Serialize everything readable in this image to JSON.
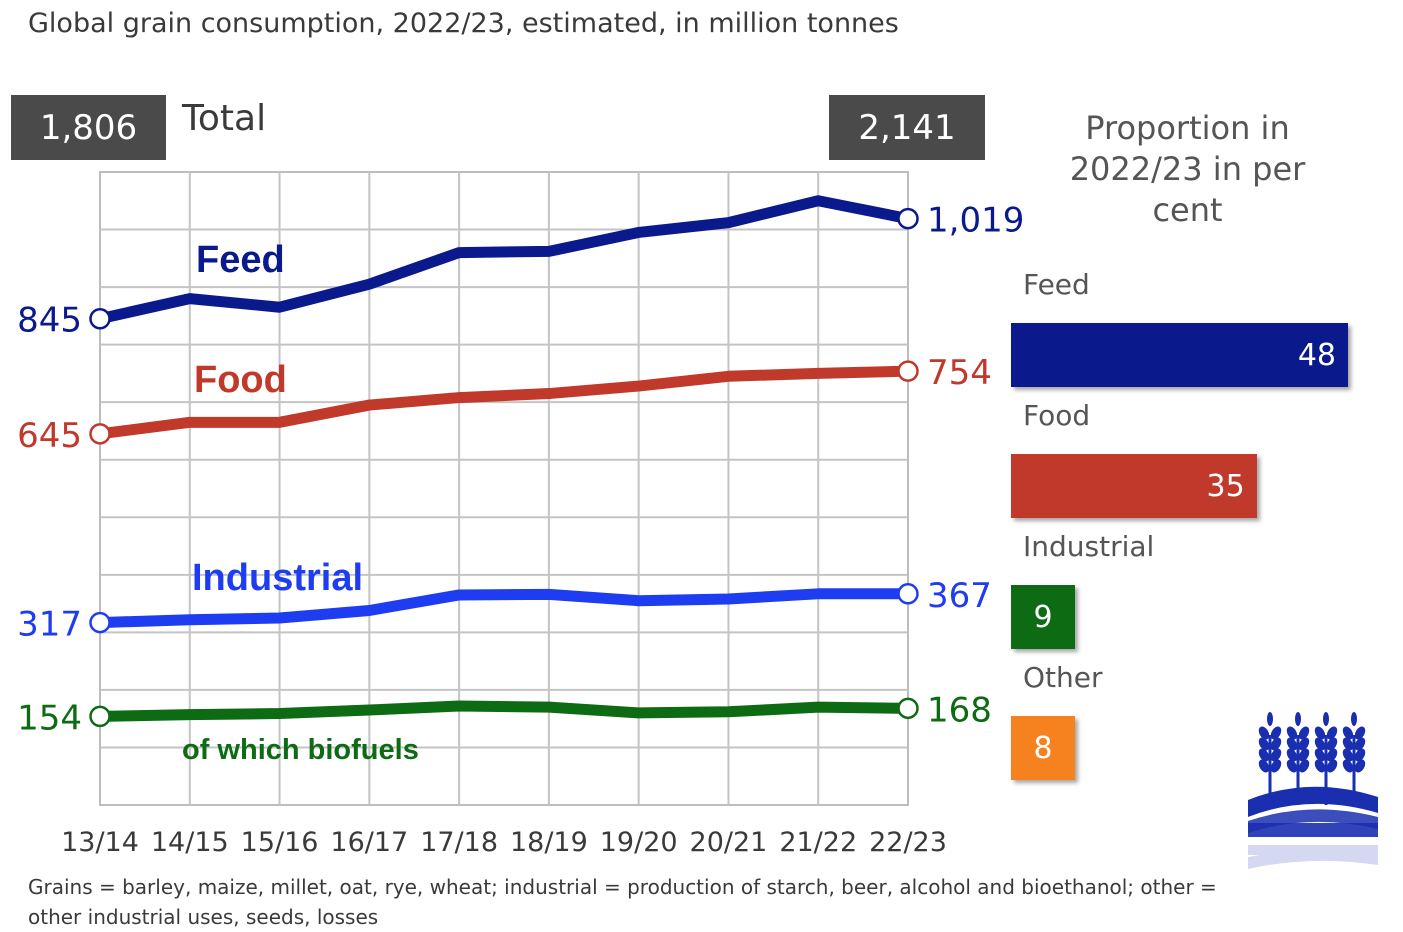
{
  "title": "Global grain consumption, 2022/23, estimated, in million tonnes",
  "total": {
    "label": "Total",
    "start": "1,806",
    "end": "2,141"
  },
  "chart_data": {
    "type": "line",
    "title": "Global grain consumption, 2022/23, estimated, in million tonnes",
    "x": [
      "13/14",
      "14/15",
      "15/16",
      "16/17",
      "17/18",
      "18/19",
      "19/20",
      "20/21",
      "21/22",
      "22/23"
    ],
    "series": [
      {
        "name": "Feed",
        "color": "#0a1a8c",
        "values": [
          845,
          880,
          865,
          905,
          960,
          962,
          995,
          1012,
          1050,
          1019
        ],
        "start_label": "845",
        "end_label": "1,019"
      },
      {
        "name": "Food",
        "color": "#c0392b",
        "values": [
          645,
          665,
          665,
          695,
          708,
          715,
          728,
          745,
          750,
          754
        ],
        "start_label": "645",
        "end_label": "754"
      },
      {
        "name": "Industrial",
        "color": "#1f3df0",
        "values": [
          317,
          322,
          325,
          338,
          365,
          366,
          355,
          358,
          367,
          367
        ],
        "start_label": "317",
        "end_label": "367"
      },
      {
        "name": "of which biofuels",
        "color": "#0d6b14",
        "values": [
          154,
          157,
          159,
          165,
          172,
          170,
          160,
          162,
          170,
          168
        ],
        "start_label": "154",
        "end_label": "168"
      }
    ],
    "ylim": [
      0,
      1100
    ],
    "grid": true
  },
  "proportion": {
    "title": "Proportion in 2022/23 in per cent",
    "items": [
      {
        "label": "Feed",
        "value": 48,
        "display": "48",
        "color": "#0a1a8c"
      },
      {
        "label": "Food",
        "value": 35,
        "display": "35",
        "color": "#c0392b"
      },
      {
        "label": "Industrial",
        "value": 9,
        "display": "9",
        "color": "#0d6b14"
      },
      {
        "label": "Other",
        "value": 8,
        "display": "8",
        "color": "#f5821f"
      }
    ]
  },
  "footnote": "Grains = barley, maize, millet, oat, rye, wheat; industrial = production of starch, beer, alcohol and bioethanol; other = other industrial uses, seeds, losses",
  "logo": {
    "icon": "wheat-logo-icon",
    "color": "#1a2fb0"
  }
}
